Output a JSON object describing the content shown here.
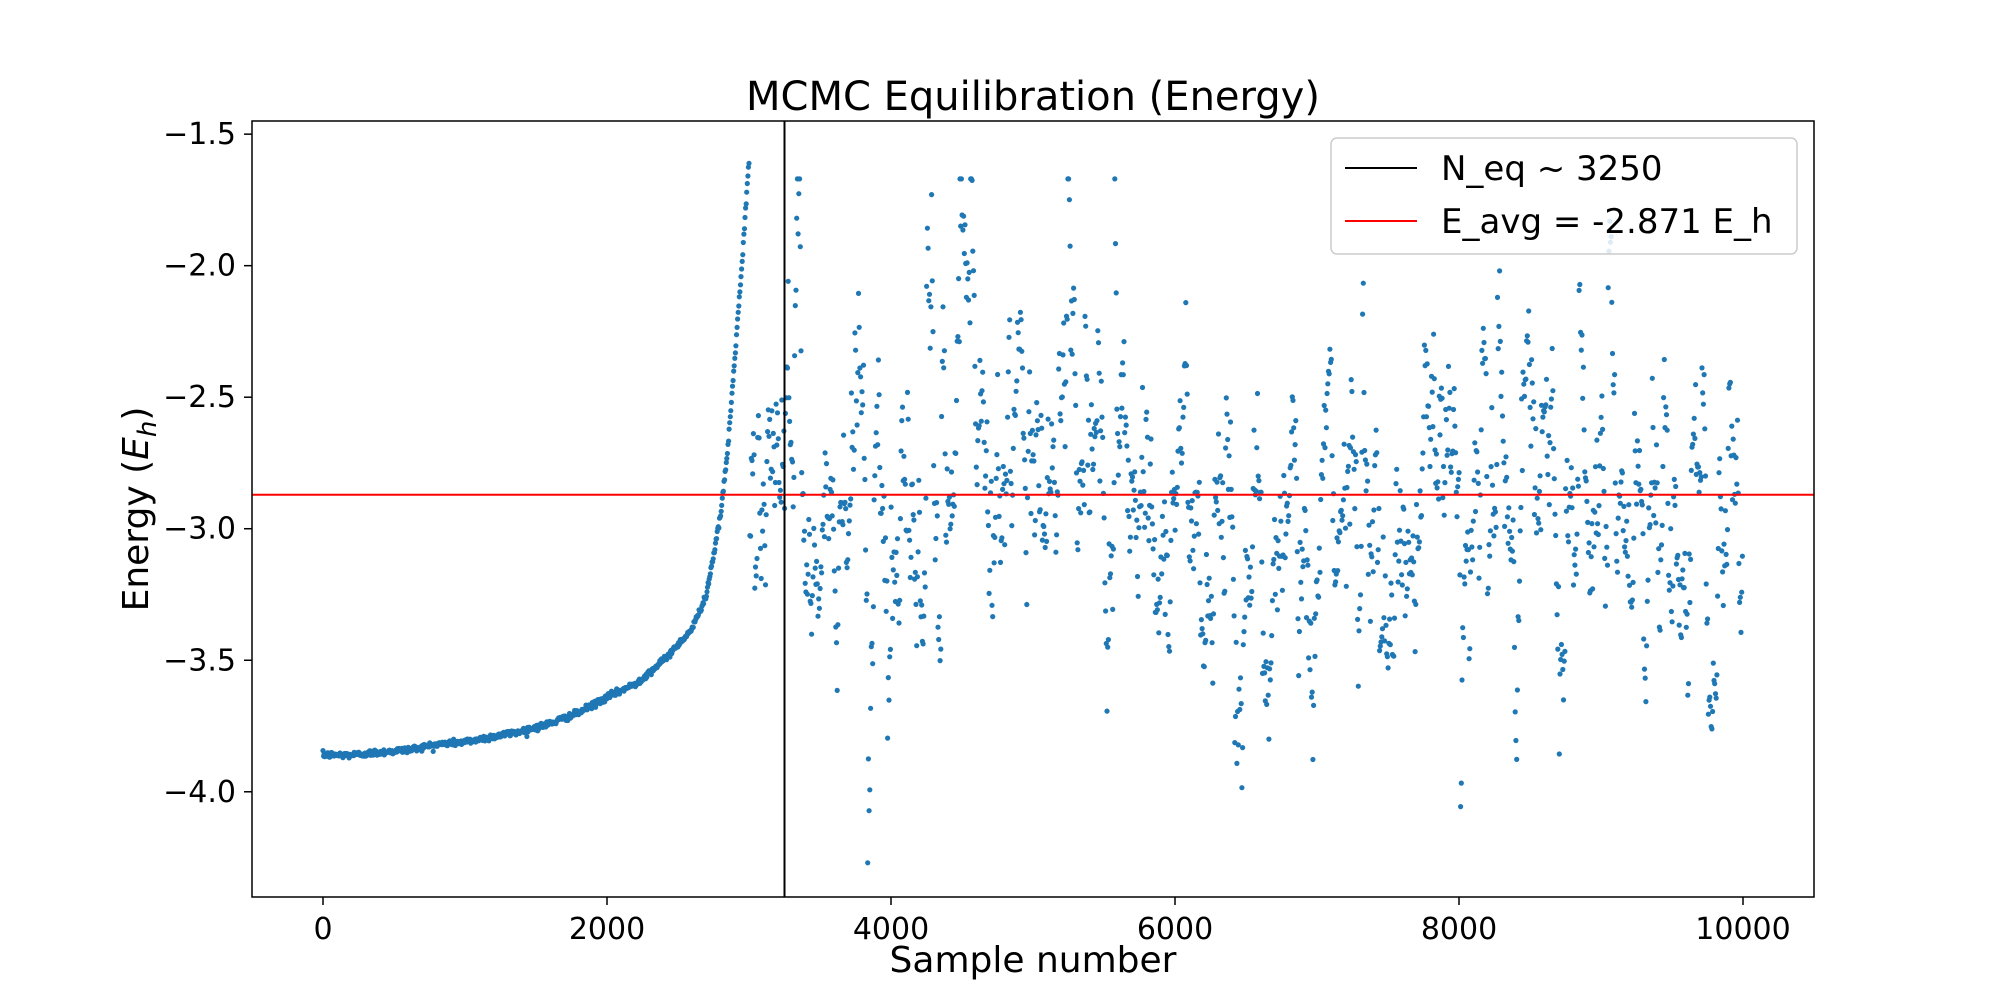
{
  "chart_data": {
    "type": "scatter",
    "title": "MCMC Equilibration (Energy)",
    "xlabel": "Sample number",
    "ylabel_prefix": "Energy (",
    "ylabel_symbol": "E",
    "ylabel_subscript": "h",
    "ylabel_suffix": ")",
    "xlim": [
      -500,
      10500
    ],
    "ylim": [
      -4.4,
      -1.45
    ],
    "xticks": [
      0,
      2000,
      4000,
      6000,
      8000,
      10000
    ],
    "xtick_labels": [
      "0",
      "2000",
      "4000",
      "6000",
      "8000",
      "10000"
    ],
    "yticks": [
      -4.0,
      -3.5,
      -3.0,
      -2.5,
      -2.0,
      -1.5
    ],
    "ytick_labels": [
      "−4.0",
      "−3.5",
      "−3.0",
      "−2.5",
      "−2.0",
      "−1.5"
    ],
    "grid": false,
    "legend_position": "top-right",
    "colors": {
      "points": "#1f77b4",
      "vline": "#000000",
      "hline": "#ff0000"
    },
    "series": [
      {
        "kind": "scatter",
        "n_samples": 10000,
        "x_range": [
          0,
          10000
        ],
        "burn_in_curve": [
          [
            0,
            -3.86
          ],
          [
            200,
            -3.86
          ],
          [
            400,
            -3.85
          ],
          [
            600,
            -3.84
          ],
          [
            800,
            -3.82
          ],
          [
            1000,
            -3.81
          ],
          [
            1200,
            -3.79
          ],
          [
            1400,
            -3.77
          ],
          [
            1600,
            -3.74
          ],
          [
            1800,
            -3.7
          ],
          [
            2000,
            -3.64
          ],
          [
            2200,
            -3.59
          ],
          [
            2400,
            -3.5
          ],
          [
            2600,
            -3.38
          ],
          [
            2700,
            -3.25
          ],
          [
            2800,
            -2.95
          ],
          [
            2850,
            -2.7
          ],
          [
            2900,
            -2.35
          ],
          [
            2950,
            -2.0
          ],
          [
            3000,
            -1.6
          ]
        ],
        "equilibrated_mean": -2.871,
        "equilibrated_min": -4.27,
        "equilibrated_max": -1.67
      },
      {
        "kind": "vline",
        "name": "N_eq ~ 3250",
        "x": 3250
      },
      {
        "kind": "hline",
        "name": "E_avg = -2.871 E_h",
        "y": -2.871
      }
    ]
  }
}
